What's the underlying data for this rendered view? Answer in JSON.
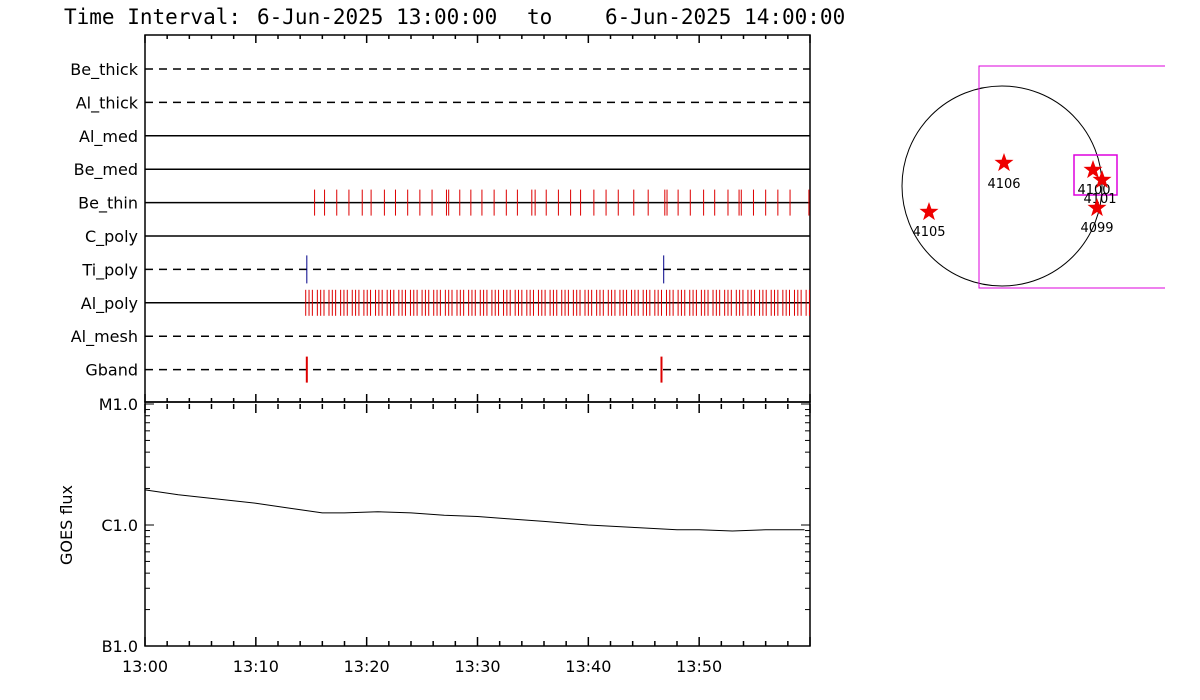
{
  "title": {
    "label": "Time Interval:",
    "start": "6-Jun-2025 13:00:00",
    "to": "to",
    "end": "6-Jun-2025 14:00:00"
  },
  "colors": {
    "frame": "#000000",
    "event_red": "#dd0000",
    "event_blue": "#000088",
    "box_magenta": "#dd00dd",
    "star_red": "#ee0000"
  },
  "chart_data": [
    {
      "type": "event-timeline",
      "x_range_minutes": [
        0,
        60
      ],
      "channels": [
        {
          "name": "Be_thick",
          "line": "dashed",
          "color": "#000000",
          "events": []
        },
        {
          "name": "Al_thick",
          "line": "dashed",
          "color": "#000000",
          "events": []
        },
        {
          "name": "Al_med",
          "line": "solid",
          "color": "#000000",
          "events": []
        },
        {
          "name": "Be_med",
          "line": "solid",
          "color": "#000000",
          "events": []
        },
        {
          "name": "Be_thin",
          "line": "solid",
          "color": "#dd0000",
          "events": [
            15.3,
            16.2,
            17.3,
            18.4,
            19.6,
            20.4,
            21.6,
            22.6,
            23.7,
            24.8,
            25.9,
            27.2,
            27.4,
            28.4,
            29.4,
            30.4,
            31.5,
            32.6,
            33.6,
            34.9,
            35.2,
            36.2,
            37.3,
            38.4,
            39.3,
            40.5,
            41.6,
            42.7,
            44.1,
            45.4,
            46.9,
            47.1,
            48.1,
            49.2,
            50.4,
            51.4,
            52.6,
            53.6,
            53.8,
            54.9,
            56.0,
            57.1,
            58.2,
            59.9
          ]
        },
        {
          "name": "C_poly",
          "line": "solid",
          "color": "#000000",
          "events": []
        },
        {
          "name": "Ti_poly",
          "line": "dashed",
          "color": "#000088",
          "events": [
            14.6,
            46.8
          ]
        },
        {
          "name": "Al_poly",
          "line": "solid",
          "color": "#dd0000",
          "events": "dense 14.5-60.0 (~2 per minute)"
        },
        {
          "name": "Al_mesh",
          "line": "dashed",
          "color": "#000000",
          "events": []
        },
        {
          "name": "Gband",
          "line": "dashed",
          "color": "#dd0000",
          "events": [
            14.6,
            46.6
          ]
        }
      ]
    },
    {
      "type": "line",
      "ylabel": "GOES flux",
      "yscale": "log",
      "ylim": [
        "B1.0",
        "M1.0"
      ],
      "yticks": [
        "M1.0",
        "C1.0",
        "B1.0"
      ],
      "xticks": [
        "13:00",
        "13:10",
        "13:20",
        "13:30",
        "13:40",
        "13:50"
      ],
      "x_minutes": [
        0,
        3,
        6,
        10,
        13,
        16,
        18,
        21,
        24,
        27,
        30,
        33,
        36,
        40,
        44,
        48,
        50,
        53,
        56,
        59.5
      ],
      "y_log_decades_above_B1": [
        1.29,
        1.25,
        1.22,
        1.18,
        1.14,
        1.1,
        1.1,
        1.11,
        1.1,
        1.08,
        1.07,
        1.05,
        1.03,
        1.0,
        0.98,
        0.96,
        0.96,
        0.95,
        0.96,
        0.96
      ]
    }
  ],
  "sun_map": {
    "regions": [
      {
        "number": "4106"
      },
      {
        "number": "4105"
      },
      {
        "number": "4100"
      },
      {
        "number": "4101"
      },
      {
        "number": "4099"
      }
    ]
  }
}
